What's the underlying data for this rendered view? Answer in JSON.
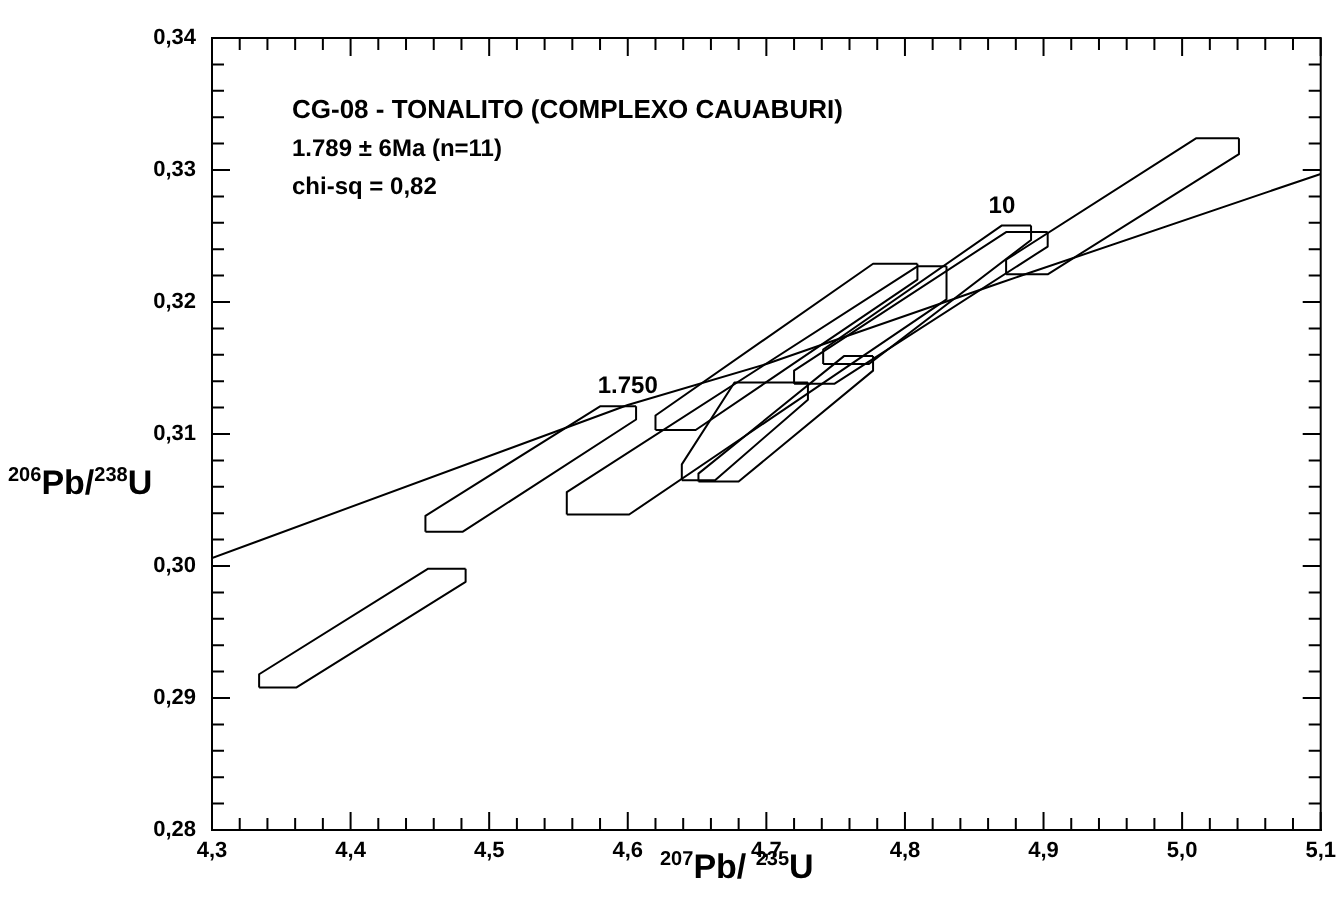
{
  "chart_data": {
    "type": "line",
    "title": "CG-08 - TONALITO (COMPLEXO CAUABURI)",
    "xlabel": "$^{207}$Pb/ $^{235}$U",
    "ylabel": "$^{206}$Pb/$^{238}$U",
    "annotations": [
      "1.789 ± 6Ma (n=11)",
      "chi-sq = 0,82",
      {
        "text": "1.750",
        "x": 4.6,
        "y": 0.3122
      },
      {
        "text": "10",
        "x": 4.87,
        "y": 0.3258
      }
    ],
    "marker": "none",
    "grid": false,
    "legend": false,
    "xlim": [
      4.3,
      5.1
    ],
    "ylim": [
      0.28,
      0.34
    ],
    "xticks": [
      {
        "value": 4.3,
        "label": "4,3"
      },
      {
        "value": 4.32,
        "label": null
      },
      {
        "value": 4.34,
        "label": null
      },
      {
        "value": 4.36,
        "label": null
      },
      {
        "value": 4.38,
        "label": null
      },
      {
        "value": 4.4,
        "label": "4,4"
      },
      {
        "value": 4.42,
        "label": null
      },
      {
        "value": 4.44,
        "label": null
      },
      {
        "value": 4.46,
        "label": null
      },
      {
        "value": 4.48,
        "label": null
      },
      {
        "value": 4.5,
        "label": "4,5"
      },
      {
        "value": 4.52,
        "label": null
      },
      {
        "value": 4.54,
        "label": null
      },
      {
        "value": 4.56,
        "label": null
      },
      {
        "value": 4.58,
        "label": null
      },
      {
        "value": 4.6,
        "label": "4,6"
      },
      {
        "value": 4.62,
        "label": null
      },
      {
        "value": 4.64,
        "label": null
      },
      {
        "value": 4.66,
        "label": null
      },
      {
        "value": 4.68,
        "label": null
      },
      {
        "value": 4.7,
        "label": "4,7"
      },
      {
        "value": 4.72,
        "label": null
      },
      {
        "value": 4.74,
        "label": null
      },
      {
        "value": 4.76,
        "label": null
      },
      {
        "value": 4.78,
        "label": null
      },
      {
        "value": 4.8,
        "label": "4,8"
      },
      {
        "value": 4.82,
        "label": null
      },
      {
        "value": 4.84,
        "label": null
      },
      {
        "value": 4.86,
        "label": null
      },
      {
        "value": 4.88,
        "label": null
      },
      {
        "value": 4.9,
        "label": "4,9"
      },
      {
        "value": 4.92,
        "label": null
      },
      {
        "value": 4.94,
        "label": null
      },
      {
        "value": 4.96,
        "label": null
      },
      {
        "value": 4.98,
        "label": null
      },
      {
        "value": 5.0,
        "label": "5,0"
      },
      {
        "value": 5.02,
        "label": null
      },
      {
        "value": 5.04,
        "label": null
      },
      {
        "value": 5.06,
        "label": null
      },
      {
        "value": 5.08,
        "label": null
      },
      {
        "value": 5.1,
        "label": "5,1"
      }
    ],
    "yticks": [
      {
        "value": 0.28,
        "label": "0,28"
      },
      {
        "value": 0.282,
        "label": null
      },
      {
        "value": 0.284,
        "label": null
      },
      {
        "value": 0.286,
        "label": null
      },
      {
        "value": 0.288,
        "label": null
      },
      {
        "value": 0.29,
        "label": "0,29"
      },
      {
        "value": 0.292,
        "label": null
      },
      {
        "value": 0.294,
        "label": null
      },
      {
        "value": 0.296,
        "label": null
      },
      {
        "value": 0.298,
        "label": null
      },
      {
        "value": 0.3,
        "label": "0,30"
      },
      {
        "value": 0.302,
        "label": null
      },
      {
        "value": 0.304,
        "label": null
      },
      {
        "value": 0.306,
        "label": null
      },
      {
        "value": 0.308,
        "label": null
      },
      {
        "value": 0.31,
        "label": "0,31"
      },
      {
        "value": 0.312,
        "label": null
      },
      {
        "value": 0.314,
        "label": null
      },
      {
        "value": 0.316,
        "label": null
      },
      {
        "value": 0.318,
        "label": null
      },
      {
        "value": 0.32,
        "label": "0,32"
      },
      {
        "value": 0.322,
        "label": null
      },
      {
        "value": 0.324,
        "label": null
      },
      {
        "value": 0.326,
        "label": null
      },
      {
        "value": 0.328,
        "label": null
      },
      {
        "value": 0.33,
        "label": "0,33"
      },
      {
        "value": 0.332,
        "label": null
      },
      {
        "value": 0.334,
        "label": null
      },
      {
        "value": 0.336,
        "label": null
      },
      {
        "value": 0.338,
        "label": null
      },
      {
        "value": 0.34,
        "label": "0,34"
      }
    ],
    "series": [
      {
        "color": "#000000",
        "x": [
          4.3,
          4.6,
          4.7,
          4.87,
          5.1
        ],
        "values": [
          0.3006,
          0.3122,
          0.3153,
          0.3215,
          0.3297
        ]
      },
      {
        "color": "#000000",
        "x": [
          4.334,
          4.334,
          4.456,
          4.483
        ],
        "values": [
          0.2908,
          0.2918,
          0.2998,
          0.2998
        ]
      },
      {
        "color": "#000000",
        "x": [
          4.334,
          4.361,
          4.483,
          4.483
        ],
        "values": [
          0.2908,
          0.2908,
          0.2988,
          0.2998
        ]
      },
      {
        "color": "#000000",
        "x": [
          4.454,
          4.454,
          4.58,
          4.606
        ],
        "values": [
          0.3026,
          0.3038,
          0.3121,
          0.3121
        ]
      },
      {
        "color": "#000000",
        "x": [
          4.454,
          4.481,
          4.606,
          4.606
        ],
        "values": [
          0.3026,
          0.3026,
          0.3111,
          0.3121
        ]
      },
      {
        "color": "#000000",
        "x": [
          4.556,
          4.556,
          4.809,
          4.83
        ],
        "values": [
          0.3039,
          0.3056,
          0.3227,
          0.3227
        ]
      },
      {
        "color": "#000000",
        "x": [
          4.556,
          4.601,
          4.83,
          4.83
        ],
        "values": [
          0.3039,
          0.3039,
          0.3202,
          0.3227
        ]
      },
      {
        "color": "#000000",
        "x": [
          4.62,
          4.62,
          4.777,
          4.809
        ],
        "values": [
          0.3103,
          0.3114,
          0.3229,
          0.3229
        ]
      },
      {
        "color": "#000000",
        "x": [
          4.62,
          4.649,
          4.809,
          4.809
        ],
        "values": [
          0.3103,
          0.3103,
          0.3217,
          0.3229
        ]
      },
      {
        "color": "#000000",
        "x": [
          4.639,
          4.639,
          4.677,
          4.73
        ],
        "values": [
          0.3065,
          0.3077,
          0.3139,
          0.3139
        ]
      },
      {
        "color": "#000000",
        "x": [
          4.639,
          4.663,
          4.73,
          4.73
        ],
        "values": [
          0.3065,
          0.3065,
          0.3126,
          0.3139
        ]
      },
      {
        "color": "#000000",
        "x": [
          4.651,
          4.651,
          4.756,
          4.777
        ],
        "values": [
          0.3064,
          0.307,
          0.3159,
          0.3159
        ]
      },
      {
        "color": "#000000",
        "x": [
          4.651,
          4.68,
          4.777,
          4.777
        ],
        "values": [
          0.3064,
          0.3064,
          0.3148,
          0.3159
        ]
      },
      {
        "color": "#000000",
        "x": [
          4.72,
          4.72,
          4.873,
          4.903
        ],
        "values": [
          0.3138,
          0.3148,
          0.3253,
          0.3253
        ]
      },
      {
        "color": "#000000",
        "x": [
          4.72,
          4.749,
          4.903,
          4.903
        ],
        "values": [
          0.3138,
          0.3138,
          0.3242,
          0.3253
        ]
      },
      {
        "color": "#000000",
        "x": [
          4.741,
          4.741,
          4.87,
          4.891
        ],
        "values": [
          0.3153,
          0.3164,
          0.3258,
          0.3258
        ]
      },
      {
        "color": "#000000",
        "x": [
          4.741,
          4.774,
          4.891,
          4.891
        ],
        "values": [
          0.3153,
          0.3153,
          0.3247,
          0.3258
        ]
      },
      {
        "color": "#000000",
        "x": [
          4.873,
          4.873,
          5.01,
          5.041
        ],
        "values": [
          0.3221,
          0.3232,
          0.3324,
          0.3324
        ]
      },
      {
        "color": "#000000",
        "x": [
          4.873,
          4.903,
          5.041,
          5.041
        ],
        "values": [
          0.3221,
          0.3221,
          0.3312,
          0.3324
        ]
      }
    ]
  }
}
